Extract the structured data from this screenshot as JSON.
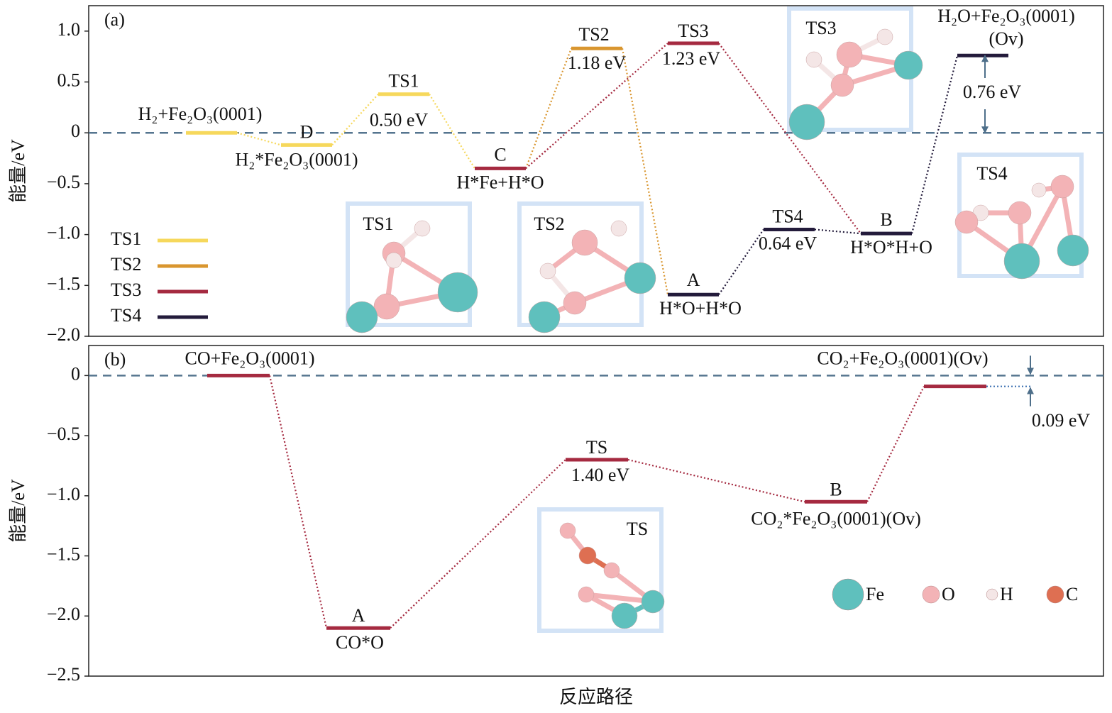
{
  "chart_data": [
    {
      "type": "energy-profile",
      "panel_label": "(a)",
      "y_label": "能量/eV",
      "ylim": [
        -2.0,
        1.25
      ],
      "yticks": [
        {
          "value": 1.0,
          "label": "1.0"
        },
        {
          "value": 0.5,
          "label": "0.5"
        },
        0,
        {
          "value": -0.5,
          "label": "−0.5"
        },
        {
          "value": -1.0,
          "label": "−1.0"
        },
        {
          "value": -1.5,
          "label": "−1.5"
        },
        {
          "value": -2.0,
          "label": "−2.0"
        }
      ],
      "reference_line": 0,
      "series": [
        {
          "name": "TS1",
          "color": "#f6d85c"
        },
        {
          "name": "TS2",
          "color": "#d9962f"
        },
        {
          "name": "TS3",
          "color": "#a52a40"
        },
        {
          "name": "TS4",
          "color": "#231b3b"
        }
      ],
      "levels": [
        {
          "value": 0,
          "series": 0,
          "above": "H₂+Fe₂O₃(0001)"
        },
        {
          "value": -0.12,
          "series": 0,
          "above": "D",
          "below": "H₂*Fe₂O₃(0001)"
        },
        {
          "value": 0.38,
          "series": 0,
          "above": "TS1",
          "below": "0.50 eV"
        },
        {
          "value": -0.35,
          "series": 2,
          "above": "C",
          "below": "H*Fe+H*O"
        },
        {
          "value": 0.83,
          "series": 1,
          "above": "TS2",
          "below": "1.18 eV"
        },
        {
          "value": 0.88,
          "series": 2,
          "above": "TS3",
          "below": "1.23 eV"
        },
        {
          "value": -1.59,
          "series": 3,
          "above": "A",
          "below": "H*O+H*O"
        },
        {
          "value": -0.95,
          "series": 3,
          "above": "TS4",
          "below": "0.64 eV"
        },
        {
          "value": -0.99,
          "series": 3,
          "above": "B",
          "below": "H*O*H+O"
        },
        {
          "value": 0.76,
          "series": 3,
          "above": [
            "H₂O+Fe₂O₃(0001)",
            "(Ov)"
          ],
          "gap_label": "0.76 eV"
        }
      ],
      "links": [
        [
          0,
          1,
          0
        ],
        [
          1,
          2,
          0
        ],
        [
          2,
          3,
          0
        ],
        [
          3,
          4,
          1
        ],
        [
          4,
          6,
          1
        ],
        [
          3,
          5,
          2
        ],
        [
          5,
          8,
          2
        ],
        [
          6,
          7,
          3
        ],
        [
          7,
          8,
          3
        ],
        [
          8,
          9,
          3
        ]
      ],
      "insets": [
        "TS1",
        "TS2",
        "TS3",
        "TS4"
      ]
    },
    {
      "type": "energy-profile",
      "panel_label": "(b)",
      "y_label": "能量/eV",
      "x_label": "反应路径",
      "ylim": [
        -2.5,
        0.25
      ],
      "yticks": [
        0,
        {
          "value": -0.5,
          "label": "−0.5"
        },
        {
          "value": -1.0,
          "label": "−1.0"
        },
        {
          "value": -1.5,
          "label": "−1.5"
        },
        {
          "value": -2.0,
          "label": "−2.0"
        },
        {
          "value": -2.5,
          "label": "−2.5"
        }
      ],
      "reference_line": 0,
      "series": [
        {
          "color": "#a52a40"
        }
      ],
      "levels": [
        {
          "value": 0,
          "series": 0,
          "above": "CO+Fe₂O₃(0001)"
        },
        {
          "value": -2.1,
          "series": 0,
          "above": "A",
          "below": "CO*O"
        },
        {
          "value": -0.7,
          "series": 0,
          "above": "TS",
          "below": "1.40 eV"
        },
        {
          "value": -1.05,
          "series": 0,
          "above": "B",
          "below": "CO₂*Fe₂O₃(0001)(Ov)"
        },
        {
          "value": -0.09,
          "series": 0,
          "above": "CO₂+Fe₂O₃(0001)(Ov)",
          "gap_label": "0.09 eV"
        }
      ],
      "links": [
        [
          0,
          1,
          0
        ],
        [
          1,
          2,
          0
        ],
        [
          2,
          3,
          0
        ],
        [
          3,
          4,
          0
        ]
      ],
      "insets": [
        "TS"
      ],
      "atom_legend": [
        "Fe",
        "O",
        "H",
        "C"
      ]
    }
  ]
}
